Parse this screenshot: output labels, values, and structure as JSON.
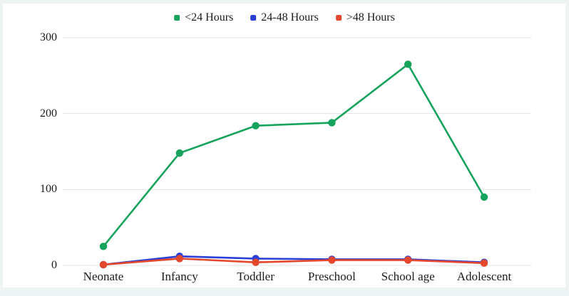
{
  "frame": {
    "border_color": "#edf4f3",
    "background": "#ffffff"
  },
  "chart_data": {
    "type": "line",
    "title": "",
    "xlabel": "",
    "ylabel": "",
    "categories": [
      "Neonate",
      "Infancy",
      "Toddler",
      "Preschool",
      "School age",
      "Adolescent"
    ],
    "series": [
      {
        "name": "<24 Hours",
        "color": "#16a35c",
        "values": [
          25,
          148,
          184,
          188,
          265,
          90
        ]
      },
      {
        "name": "24-48 Hours",
        "color": "#2b3fd6",
        "values": [
          1,
          12,
          9,
          8,
          8,
          4
        ]
      },
      {
        "name": ">48 Hours",
        "color": "#e5472d",
        "values": [
          1,
          9,
          4,
          7,
          7,
          3
        ]
      }
    ],
    "ylim": [
      0,
      300
    ],
    "yticks": [
      0,
      100,
      200,
      300
    ],
    "grid": true,
    "gridline_color": "#e2e2e2",
    "axis_text_color": "#1b1b1b",
    "legend_position": "top-center",
    "marker": "circle"
  }
}
